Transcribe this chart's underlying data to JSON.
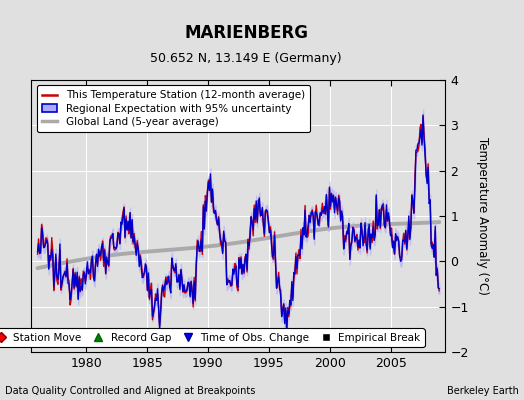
{
  "title": "MARIENBERG",
  "subtitle": "50.652 N, 13.149 E (Germany)",
  "ylabel": "Temperature Anomaly (°C)",
  "xlim": [
    1975.5,
    2009.5
  ],
  "ylim": [
    -2,
    4
  ],
  "yticks": [
    -2,
    -1,
    0,
    1,
    2,
    3,
    4
  ],
  "xticks": [
    1980,
    1985,
    1990,
    1995,
    2000,
    2005
  ],
  "background_color": "#e0e0e0",
  "plot_bg_color": "#e0e0e0",
  "grid_color": "#ffffff",
  "footer_left": "Data Quality Controlled and Aligned at Breakpoints",
  "footer_right": "Berkeley Earth",
  "legend_items": [
    {
      "label": "This Temperature Station (12-month average)",
      "color": "red",
      "lw": 2
    },
    {
      "label": "Regional Expectation with 95% uncertainty",
      "color": "blue",
      "lw": 2
    },
    {
      "label": "Global Land (5-year average)",
      "color": "#b0b0b0",
      "lw": 3
    }
  ],
  "bottom_legend": [
    {
      "label": "Station Move",
      "color": "red",
      "marker": "D"
    },
    {
      "label": "Record Gap",
      "color": "green",
      "marker": "^"
    },
    {
      "label": "Time of Obs. Change",
      "color": "blue",
      "marker": "v"
    },
    {
      "label": "Empirical Break",
      "color": "black",
      "marker": "s"
    }
  ],
  "uncertainty_color": "#aaaaff",
  "uncertainty_alpha": 0.5,
  "blue_line_color": "#0000cc",
  "red_line_color": "#cc0000",
  "gray_line_color": "#aaaaaa"
}
